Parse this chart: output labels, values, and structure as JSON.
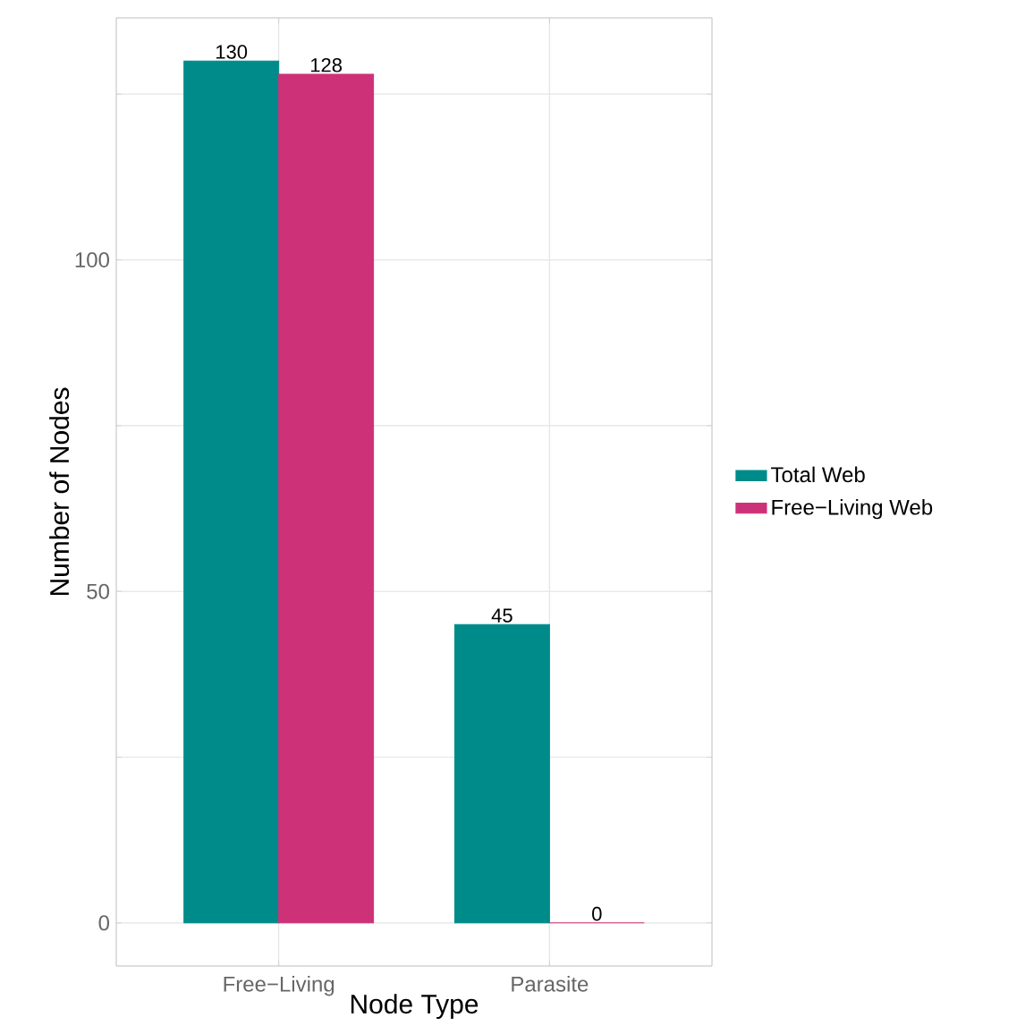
{
  "chart_data": {
    "type": "bar",
    "xlabel": "Node Type",
    "ylabel": "Number of Nodes",
    "categories": [
      "Free−Living",
      "Parasite"
    ],
    "series": [
      {
        "name": "Total Web",
        "color": "#008b8b",
        "values": [
          130,
          45
        ]
      },
      {
        "name": "Free−Living Web",
        "color": "#cd3278",
        "values": [
          128,
          0
        ]
      }
    ],
    "ylim": [
      -6.5,
      136.5
    ],
    "yticks": [
      0,
      {
        "value": 25,
        "label": null
      },
      50,
      {
        "value": 75,
        "label": null
      },
      100,
      {
        "value": 125,
        "label": null
      }
    ],
    "grid": true,
    "legend": "right",
    "data_labels": true
  }
}
